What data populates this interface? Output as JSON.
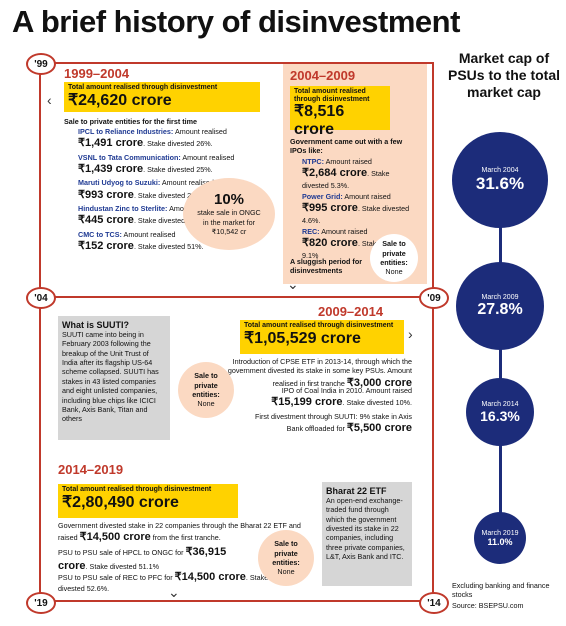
{
  "title": "A brief history of disinvestment",
  "sidebar": {
    "heading": "Market cap of PSUs to the total market cap",
    "items": [
      {
        "date": "March 2004",
        "value": "31.6%"
      },
      {
        "date": "March 2009",
        "value": "27.8%"
      },
      {
        "date": "March 2014",
        "value": "16.3%"
      },
      {
        "date": "March 2019",
        "value": "11.0%"
      }
    ],
    "note": "Excluding banking and finance stocks",
    "source": "Source: BSEPSU.com"
  },
  "years": {
    "y99": "'99",
    "y04": "'04",
    "y09": "'09",
    "y14": "'14",
    "y19": "'19"
  },
  "p1": {
    "period": "1999–2004",
    "total_label": "Total amount realised through disinvestment",
    "total": "₹24,620 crore",
    "sale_head": "Sale to private entities for the first time",
    "deals": [
      {
        "name": "IPCL to Reliance Industries:",
        "pre": "Amount realised",
        "amt": "₹1,491 crore",
        "post": ". Stake divested 26%."
      },
      {
        "name": "VSNL to Tata Communication:",
        "pre": "Amount realised",
        "amt": "₹1,439 crore",
        "post": ". Stake divested 25%."
      },
      {
        "name": "Maruti Udyog to Suzuki:",
        "pre": "Amount realised",
        "amt": "₹993 crore",
        "post": ". Stake divested 27.5%."
      },
      {
        "name": "Hindustan Zinc to Sterlite:",
        "pre": "Amount realised ",
        "amt": "₹445 crore",
        "post": ". Stake divested 22.1%."
      },
      {
        "name": "CMC to TCS:",
        "pre": "Amount realised",
        "amt": "₹152 crore",
        "post": ". Stake divested 51%."
      }
    ],
    "circle_big": "10%",
    "circle_text": "stake sale in ONGC in the market for ₹10,542 cr"
  },
  "p2": {
    "period": "2004–2009",
    "total_label": "Total amount realised through disinvestment",
    "total": "₹8,516 crore",
    "ipo_head": "Government came out with a few IPOs like:",
    "deals": [
      {
        "name": "NTPC:",
        "pre": "Amount raised ",
        "amt": "₹2,684 crore",
        "post": ". Stake divested 5.3%."
      },
      {
        "name": "Power Grid:",
        "pre": "Amount raised ",
        "amt": "₹995 crore",
        "post": ". Stake divested 4.6%."
      },
      {
        "name": "REC:",
        "pre": "Amount raised ",
        "amt": "₹820 crore",
        "post": ". Stake divested 9.1%"
      }
    ],
    "sluggish": "A sluggish period for disinvestments",
    "circle_text": "Sale to private entities:",
    "circle_val": "None"
  },
  "suuti": {
    "head": "What is SUUTI?",
    "body": "SUUTI came into being in February 2003 following the breakup of the Unit Trust of India after its flagship US-64 scheme collapsed. SUUTI has stakes in 43 listed companies and eight unlisted companies, including blue chips like ICICI Bank, Axis Bank, Titan and others"
  },
  "p3": {
    "period": "2009–2014",
    "total_label": "Total amount realised through disinvestment",
    "total": "₹1,05,529 crore",
    "l1": "Introduction of CPSE ETF in 2013-14, through which the government divested its stake in some key PSUs. Amount realised in first tranche ",
    "l1amt": "₹3,000 crore",
    "l2": "IPO of Coal India in 2010. Amount raised ",
    "l2amt": "₹15,199 crore",
    "l2post": ". Stake divested 10%.",
    "l3": "First divestment through SUUTI: 9% stake in Axis Bank offloaded for ",
    "l3amt": "₹5,500 crore",
    "circle_text": "Sale to private entities:",
    "circle_val": "None"
  },
  "p4": {
    "period": "2014–2019",
    "total_label": "Total amount realised through disinvestment",
    "total": "₹2,80,490 crore",
    "l1": "Government divested stake in 22 companies through the Bharat 22 ETF and raised ",
    "l1amt": "₹14,500 crore",
    "l1post": " from the first tranche.",
    "l2": "PSU to PSU sale of HPCL to ONGC for ",
    "l2amt": "₹36,915 crore",
    "l2post": ". Stake divested 51.1%",
    "l3": "PSU to PSU sale of REC to PFC for ",
    "l3amt": "₹14,500 crore",
    "l3post": ". Stake divested 52.6%.",
    "circle_text": "Sale to private entities:",
    "circle_val": "None"
  },
  "bharat": {
    "head": "Bharat 22 ETF",
    "body": "An open-end exchange-traded fund through which the government divested its stake in 22 companies, including three private companies, L&T, Axis Bank and ITC."
  },
  "colors": {
    "accent": "#c0392b",
    "navy": "#1c2c7a",
    "yellow": "#ffd200",
    "peach": "#fbd9c2",
    "gray": "#d6d6d6"
  }
}
